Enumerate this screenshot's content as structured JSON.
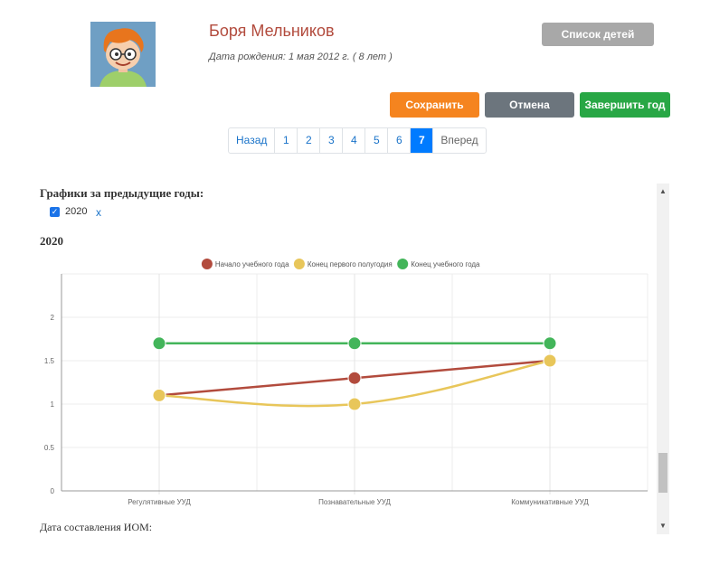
{
  "header": {
    "child_name": "Боря Мельников",
    "birth_info": "Дата рождения: 1 мая 2012 г. ( 8 лет )",
    "children_list_button": "Список детей"
  },
  "actions": {
    "save": "Сохранить",
    "cancel": "Отмена",
    "finish_year": "Завершить год"
  },
  "pagination": {
    "prev": "Назад",
    "pages": [
      "1",
      "2",
      "3",
      "4",
      "5",
      "6",
      "7"
    ],
    "active": "7",
    "next": "Вперед"
  },
  "prev_years": {
    "title": "Графики за предыдущие годы:",
    "year_checkbox_label": "2020",
    "remove_label": "x"
  },
  "chart_title": "2020",
  "iom_date_label": "Дата составления ИОМ:",
  "colors": {
    "accent_red": "#b24b3d",
    "save": "#f5841f",
    "cancel": "#6c757d",
    "finish": "#28a745",
    "list": "#a8a8a8",
    "active_page": "#007bff"
  },
  "chart_data": {
    "type": "line",
    "title": "2020",
    "categories": [
      "Регулятивные УУД",
      "Познавательные УУД",
      "Коммуникативные УУД"
    ],
    "series": [
      {
        "name": "Начало учебного года",
        "values": [
          1.1,
          1.3,
          1.5
        ],
        "color": "#b24b3d"
      },
      {
        "name": "Конец первого полугодия",
        "values": [
          1.1,
          1.0,
          1.5
        ],
        "color": "#e8c65a"
      },
      {
        "name": "Конец учебного года",
        "values": [
          1.7,
          1.7,
          1.7
        ],
        "color": "#43b55a"
      }
    ],
    "y_ticks": [
      "0",
      "0.5",
      "1",
      "1.5",
      "2"
    ],
    "ylim": [
      0,
      2.5
    ],
    "legend_position": "top",
    "grid": true
  }
}
